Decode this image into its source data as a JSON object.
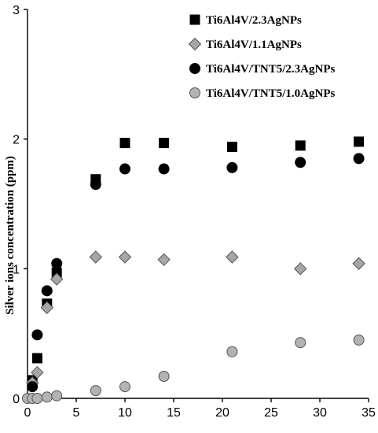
{
  "chart_data": {
    "type": "scatter",
    "title": "",
    "xlabel": "",
    "ylabel": "Silver ions concentration (ppm)",
    "xlim": [
      0,
      35
    ],
    "ylim": [
      0,
      3
    ],
    "xticks": [
      0,
      5,
      10,
      15,
      20,
      25,
      30,
      35
    ],
    "yticks": [
      0,
      1,
      2,
      3
    ],
    "grid": false,
    "legend_position": "top-right",
    "series": [
      {
        "name": "Ti6Al4V/2.3AgNPs",
        "marker": "square",
        "color": "#000000",
        "stroke": "#000000",
        "x": [
          0.5,
          1,
          2,
          3,
          7,
          10,
          14,
          21,
          28,
          34
        ],
        "y": [
          0.14,
          0.31,
          0.73,
          0.97,
          1.69,
          1.97,
          1.97,
          1.94,
          1.95,
          1.98
        ]
      },
      {
        "name": "Ti6Al4V/1.1AgNPs",
        "marker": "diamond",
        "color": "#a6a6a6",
        "stroke": "#555555",
        "x": [
          0.5,
          1,
          2,
          3,
          7,
          10,
          14,
          21,
          28,
          34
        ],
        "y": [
          0.12,
          0.2,
          0.7,
          0.92,
          1.09,
          1.09,
          1.07,
          1.09,
          1.0,
          1.04
        ]
      },
      {
        "name": "Ti6Al4V/TNT5/2.3AgNPs",
        "marker": "circle",
        "color": "#000000",
        "stroke": "#000000",
        "x": [
          0.5,
          1,
          2,
          3,
          7,
          10,
          14,
          21,
          28,
          34
        ],
        "y": [
          0.09,
          0.49,
          0.83,
          1.04,
          1.65,
          1.77,
          1.77,
          1.78,
          1.82,
          1.85
        ]
      },
      {
        "name": "Ti6Al4V/TNT5/1.0AgNPs",
        "marker": "circle",
        "color": "#b3b3b3",
        "stroke": "#555555",
        "x": [
          0,
          0.5,
          1,
          2,
          3,
          7,
          10,
          14,
          21,
          28,
          34
        ],
        "y": [
          0.0,
          0.0,
          0.0,
          0.01,
          0.02,
          0.06,
          0.09,
          0.17,
          0.36,
          0.43,
          0.45
        ]
      }
    ]
  }
}
